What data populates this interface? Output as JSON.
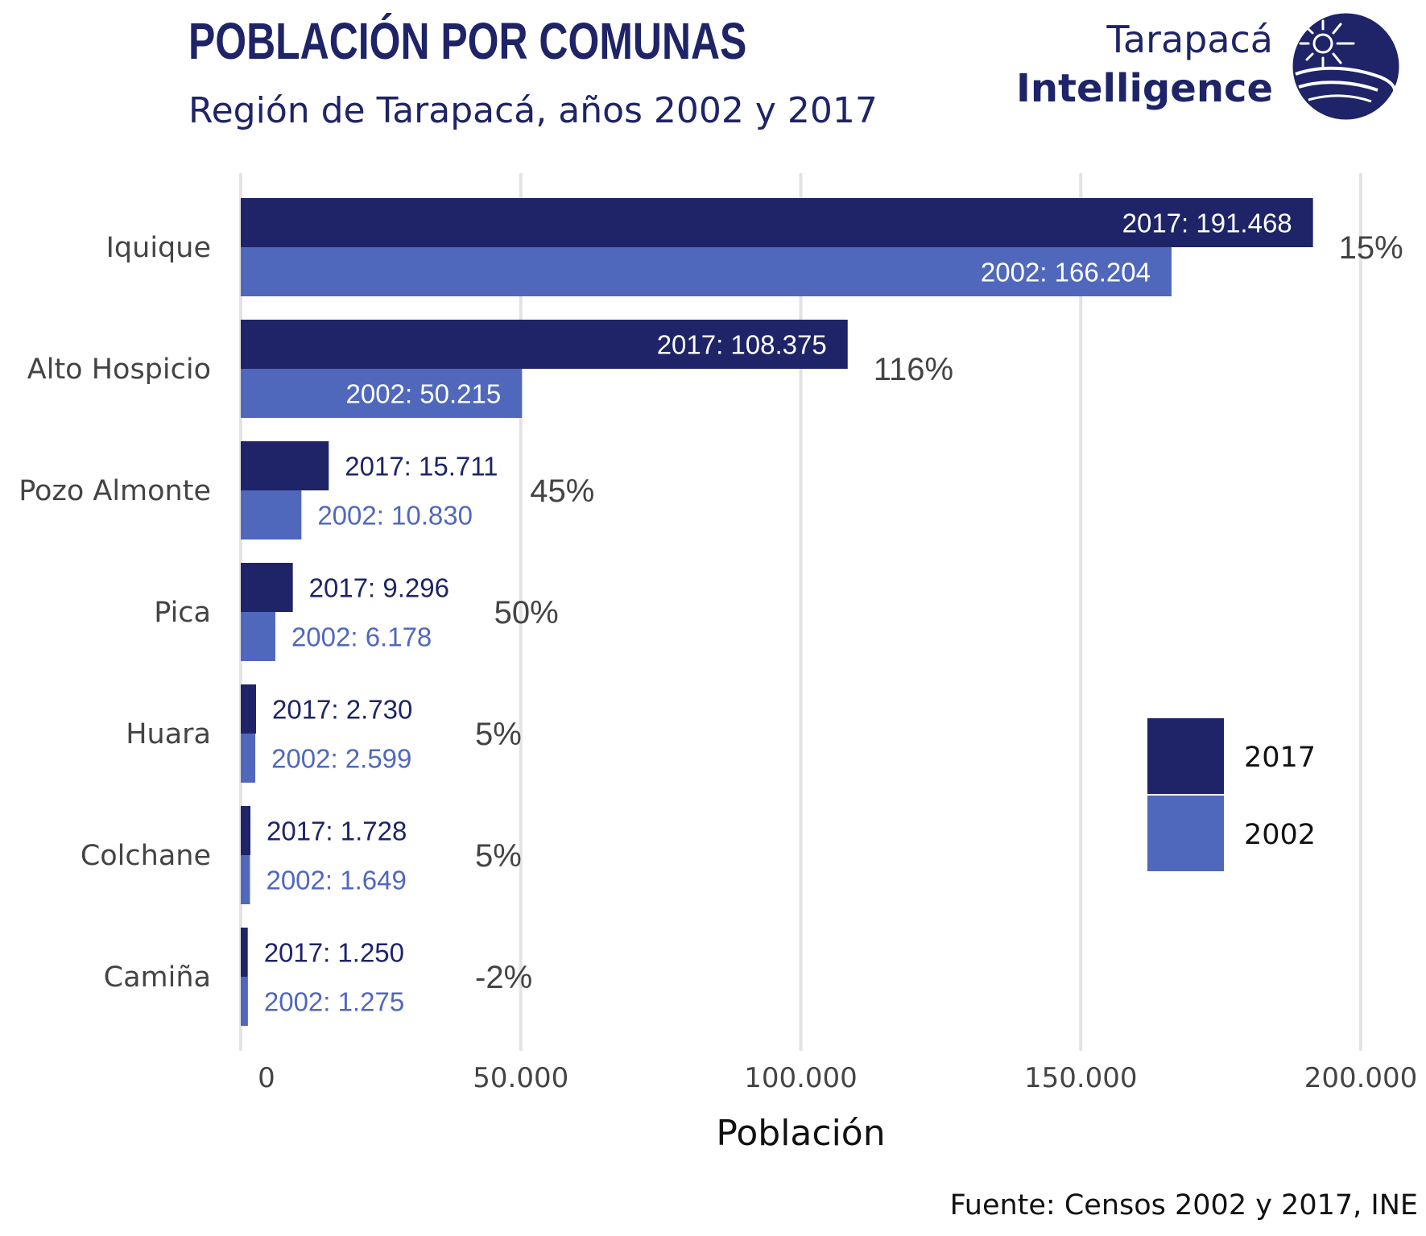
{
  "header": {
    "title": "POBLACIÓN POR COMUNAS",
    "subtitle": "Región de Tarapacá, años 2002 y 2017"
  },
  "logo": {
    "line1": "Tarapacá",
    "line2": "Intelligence",
    "emblem_icon": "sun-globe-emblem-icon"
  },
  "source": "Fuente: Censos 2002 y 2017, INE",
  "colors": {
    "series_2017": "#1e2467",
    "series_2002": "#5068bc",
    "grid": "#e3e3e3",
    "label_2017_outside": "#1e2467",
    "label_2002_outside": "#5068bc",
    "label_inside": "#ffffff"
  },
  "chart_data": {
    "type": "bar",
    "orientation": "horizontal",
    "categories": [
      "Iquique",
      "Alto Hospicio",
      "Pozo Almonte",
      "Pica",
      "Huara",
      "Colchane",
      "Camiña"
    ],
    "series": [
      {
        "name": "2017",
        "values": [
          191468,
          108375,
          15711,
          9296,
          2730,
          1728,
          1250
        ],
        "labels": [
          "2017: 191.468",
          "2017: 108.375",
          "2017:  15.711",
          "2017:   9.296",
          "2017:   2.730",
          "2017:   1.728",
          "2017:   1.250"
        ]
      },
      {
        "name": "2002",
        "values": [
          166204,
          50215,
          10830,
          6178,
          2599,
          1649,
          1275
        ],
        "labels": [
          "2002: 166.204",
          "2002:  50.215",
          "2002:  10.830",
          "2002:   6.178",
          "2002:   2.599",
          "2002:   1.649",
          "2002:   1.275"
        ]
      }
    ],
    "growth_labels": [
      "15%",
      "116%",
      "45%",
      "50%",
      "5%",
      "5%",
      "-2%"
    ],
    "xlabel": "Población",
    "ylabel": "",
    "xlim": [
      0,
      200000
    ],
    "xticks": [
      0,
      50000,
      100000,
      150000,
      200000
    ],
    "xtick_labels": [
      "0",
      "50.000",
      "100.000",
      "150.000",
      "200.000"
    ],
    "grid": true,
    "legend": {
      "position": "right",
      "entries": [
        "2017",
        "2002"
      ]
    }
  }
}
